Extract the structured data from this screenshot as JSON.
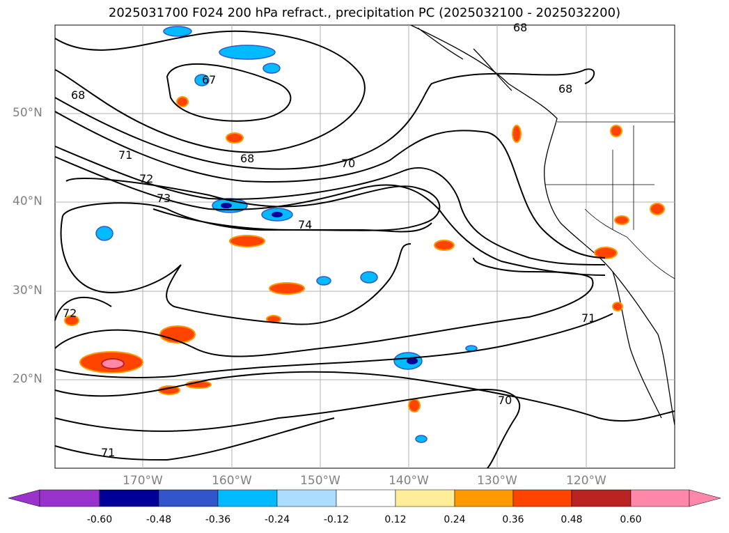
{
  "title": "2025031700 F024 200 hPa refract., precipitation PC (2025032100 - 2025032200)",
  "lat_labels": [
    "50°N",
    "40°N",
    "30°N",
    "20°N"
  ],
  "lon_labels": [
    "170°W",
    "160°W",
    "150°W",
    "140°W",
    "130°W",
    "120°W"
  ],
  "contour_labels": [
    "68",
    "67",
    "68",
    "71",
    "72",
    "73",
    "68",
    "70",
    "74",
    "72",
    "71",
    "70",
    "71",
    "68"
  ],
  "colorbar": {
    "ticks": [
      "-0.60",
      "-0.48",
      "-0.36",
      "-0.24",
      "-0.12",
      "0.12",
      "0.24",
      "0.36",
      "0.48",
      "0.60"
    ],
    "colors": [
      "#9933cc",
      "#000099",
      "#3355cc",
      "#00bbff",
      "#aaddff",
      "#ffffff",
      "#ffee99",
      "#ff9900",
      "#ff4400",
      "#bb2222",
      "#ff88aa"
    ]
  }
}
